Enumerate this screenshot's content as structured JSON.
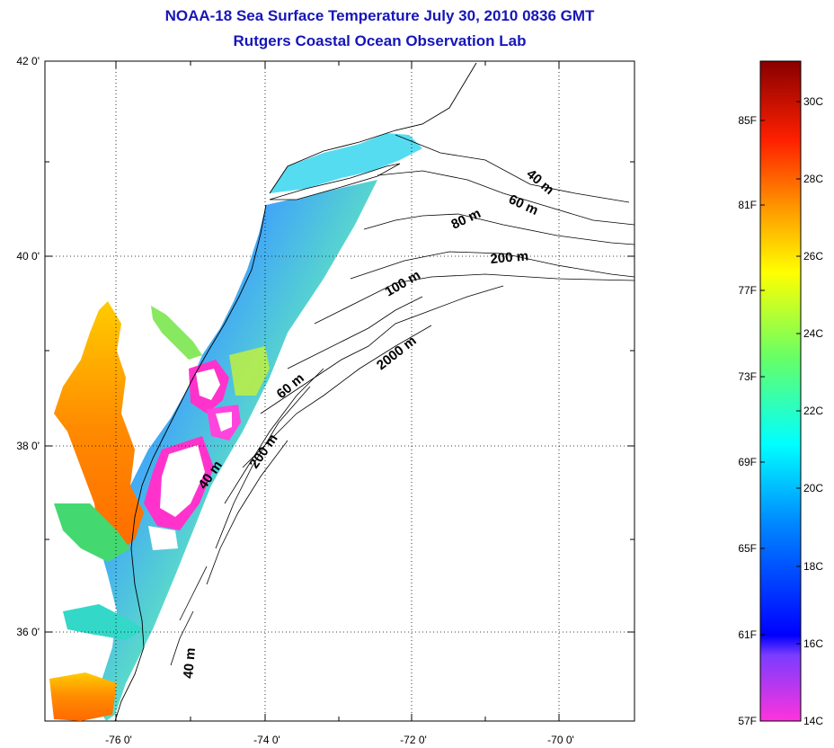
{
  "title_line1": "NOAA-18 Sea Surface Temperature July 30, 2010 0836 GMT",
  "title_line2": "Rutgers Coastal Ocean Observation Lab",
  "map": {
    "lat_labels": [
      "42 0'",
      "40 0'",
      "38 0'",
      "36 0'"
    ],
    "lon_labels": [
      "-76 0'",
      "-74 0'",
      "-72 0'",
      "-70 0'"
    ],
    "grid": "dotted"
  },
  "contour_labels": [
    "40 m",
    "60 m",
    "80 m",
    "200 m",
    "100 m",
    "2000 m",
    "60 m",
    "200 m",
    "40 m",
    "40 m"
  ],
  "colorbar": {
    "fahrenheit": [
      "85F",
      "81F",
      "77F",
      "73F",
      "69F",
      "65F",
      "61F",
      "57F"
    ],
    "celsius": [
      "30C",
      "28C",
      "26C",
      "24C",
      "22C",
      "20C",
      "18C",
      "16C",
      "14C"
    ],
    "colors": [
      "#8b0000",
      "#ff0000",
      "#ff8000",
      "#ffff00",
      "#80ff40",
      "#00ffff",
      "#0080ff",
      "#0000ff",
      "#8000ff",
      "#ff40ff"
    ]
  }
}
